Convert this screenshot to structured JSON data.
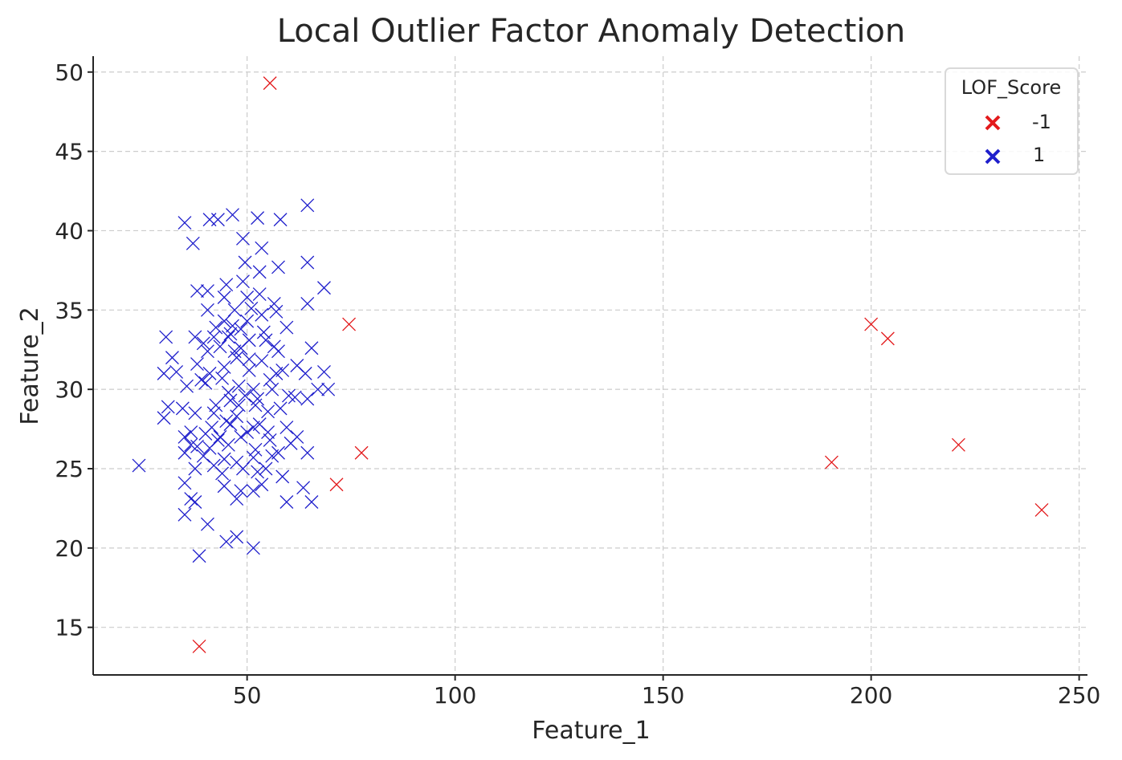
{
  "chart_data": {
    "type": "scatter",
    "title": "Local Outlier Factor Anomaly Detection",
    "xlabel": "Feature_1",
    "ylabel": "Feature_2",
    "xlim": [
      13,
      252
    ],
    "ylim": [
      12,
      51
    ],
    "xticks": [
      50,
      100,
      150,
      200,
      250
    ],
    "yticks": [
      15,
      20,
      25,
      30,
      35,
      40,
      45,
      50
    ],
    "grid": true,
    "marker": "x",
    "legend": {
      "title": "LOF_Score",
      "placement": "top-right"
    },
    "series": [
      {
        "name": "-1",
        "color": "#e31a1c",
        "points": [
          [
            55.5,
            49.3
          ],
          [
            38.5,
            13.8
          ],
          [
            74.5,
            34.1
          ],
          [
            77.5,
            26.0
          ],
          [
            71.5,
            24.0
          ],
          [
            200.0,
            34.1
          ],
          [
            204.0,
            33.2
          ],
          [
            190.5,
            25.4
          ],
          [
            221.0,
            26.5
          ],
          [
            241.0,
            22.4
          ]
        ]
      },
      {
        "name": "1",
        "color": "#1f1fcc",
        "points": [
          [
            24.0,
            25.2
          ],
          [
            35.0,
            40.5
          ],
          [
            37.0,
            39.2
          ],
          [
            41.0,
            40.7
          ],
          [
            43.0,
            40.7
          ],
          [
            46.5,
            41.0
          ],
          [
            52.5,
            40.8
          ],
          [
            58.0,
            40.7
          ],
          [
            64.5,
            41.6
          ],
          [
            49.0,
            39.5
          ],
          [
            53.5,
            38.9
          ],
          [
            49.5,
            38.0
          ],
          [
            64.5,
            38.0
          ],
          [
            57.5,
            37.7
          ],
          [
            53.0,
            37.4
          ],
          [
            49.0,
            36.8
          ],
          [
            68.5,
            36.4
          ],
          [
            38.0,
            36.2
          ],
          [
            40.5,
            36.2
          ],
          [
            44.5,
            35.8
          ],
          [
            50.0,
            35.8
          ],
          [
            56.5,
            35.4
          ],
          [
            64.5,
            35.4
          ],
          [
            40.5,
            35.0
          ],
          [
            47.0,
            35.0
          ],
          [
            53.5,
            34.7
          ],
          [
            44.5,
            34.3
          ],
          [
            50.0,
            34.3
          ],
          [
            42.5,
            33.9
          ],
          [
            59.5,
            33.9
          ],
          [
            46.0,
            33.5
          ],
          [
            30.5,
            33.3
          ],
          [
            37.5,
            33.3
          ],
          [
            45.5,
            33.3
          ],
          [
            50.5,
            33.1
          ],
          [
            54.5,
            33.1
          ],
          [
            39.5,
            32.9
          ],
          [
            43.5,
            32.7
          ],
          [
            48.5,
            32.6
          ],
          [
            65.5,
            32.6
          ],
          [
            40.5,
            32.4
          ],
          [
            57.5,
            32.4
          ],
          [
            32.0,
            32.0
          ],
          [
            47.5,
            32.0
          ],
          [
            53.5,
            31.8
          ],
          [
            62.0,
            31.5
          ],
          [
            38.0,
            31.6
          ],
          [
            44.5,
            31.4
          ],
          [
            33.0,
            31.1
          ],
          [
            50.5,
            31.2
          ],
          [
            68.5,
            31.1
          ],
          [
            57.0,
            31.0
          ],
          [
            64.0,
            31.0
          ],
          [
            30.0,
            31.0
          ],
          [
            35.5,
            30.2
          ],
          [
            40.0,
            30.4
          ],
          [
            48.0,
            30.2
          ],
          [
            51.5,
            30.0
          ],
          [
            56.0,
            30.0
          ],
          [
            67.0,
            30.0
          ],
          [
            69.5,
            30.0
          ],
          [
            31.0,
            28.9
          ],
          [
            45.5,
            29.8
          ],
          [
            49.5,
            29.6
          ],
          [
            52.5,
            29.4
          ],
          [
            60.0,
            29.6
          ],
          [
            64.5,
            29.4
          ],
          [
            34.5,
            28.8
          ],
          [
            42.0,
            28.5
          ],
          [
            47.5,
            28.3
          ],
          [
            55.0,
            28.6
          ],
          [
            58.0,
            28.8
          ],
          [
            30.0,
            28.2
          ],
          [
            37.5,
            28.5
          ],
          [
            45.0,
            28.0
          ],
          [
            51.5,
            27.6
          ],
          [
            53.0,
            27.8
          ],
          [
            59.5,
            27.6
          ],
          [
            35.0,
            27.0
          ],
          [
            40.0,
            27.2
          ],
          [
            43.5,
            27.0
          ],
          [
            48.5,
            27.0
          ],
          [
            55.0,
            27.3
          ],
          [
            62.0,
            27.0
          ],
          [
            36.5,
            26.5
          ],
          [
            41.0,
            26.3
          ],
          [
            45.5,
            26.5
          ],
          [
            52.0,
            26.2
          ],
          [
            57.5,
            26.0
          ],
          [
            64.5,
            26.0
          ],
          [
            35.0,
            26.0
          ],
          [
            39.5,
            25.8
          ],
          [
            44.5,
            25.6
          ],
          [
            51.5,
            25.7
          ],
          [
            56.0,
            25.8
          ],
          [
            42.0,
            25.2
          ],
          [
            47.5,
            25.4
          ],
          [
            54.5,
            25.0
          ],
          [
            37.5,
            25.0
          ],
          [
            58.5,
            24.5
          ],
          [
            35.0,
            24.1
          ],
          [
            44.5,
            23.9
          ],
          [
            48.5,
            23.6
          ],
          [
            53.5,
            24.0
          ],
          [
            63.5,
            23.8
          ],
          [
            51.5,
            23.6
          ],
          [
            37.5,
            22.9
          ],
          [
            36.5,
            23.1
          ],
          [
            47.5,
            23.1
          ],
          [
            59.5,
            22.9
          ],
          [
            65.5,
            22.9
          ],
          [
            35.0,
            22.1
          ],
          [
            40.5,
            21.5
          ],
          [
            47.5,
            20.7
          ],
          [
            45.0,
            20.4
          ],
          [
            51.5,
            20.0
          ],
          [
            38.5,
            19.5
          ],
          [
            42.0,
            33.3
          ],
          [
            46.5,
            34.0
          ],
          [
            44.0,
            30.7
          ],
          [
            50.5,
            31.9
          ],
          [
            52.0,
            29.0
          ],
          [
            46.0,
            27.8
          ],
          [
            55.5,
            30.6
          ],
          [
            41.5,
            27.6
          ],
          [
            49.0,
            25.0
          ],
          [
            60.5,
            26.6
          ],
          [
            56.5,
            32.7
          ],
          [
            48.0,
            29.0
          ],
          [
            53.0,
            36.0
          ],
          [
            43.0,
            26.8
          ],
          [
            39.0,
            30.6
          ],
          [
            54.0,
            33.6
          ],
          [
            58.5,
            31.2
          ],
          [
            47.0,
            32.4
          ],
          [
            36.5,
            27.3
          ],
          [
            61.5,
            29.5
          ],
          [
            45.0,
            36.6
          ],
          [
            52.5,
            24.8
          ],
          [
            42.5,
            29.0
          ],
          [
            50.0,
            27.3
          ],
          [
            57.0,
            34.9
          ],
          [
            44.0,
            24.7
          ],
          [
            41.0,
            31.0
          ],
          [
            48.5,
            33.8
          ],
          [
            55.5,
            26.8
          ],
          [
            38.0,
            26.4
          ],
          [
            51.0,
            35.1
          ],
          [
            46.0,
            29.3
          ]
        ]
      }
    ]
  }
}
